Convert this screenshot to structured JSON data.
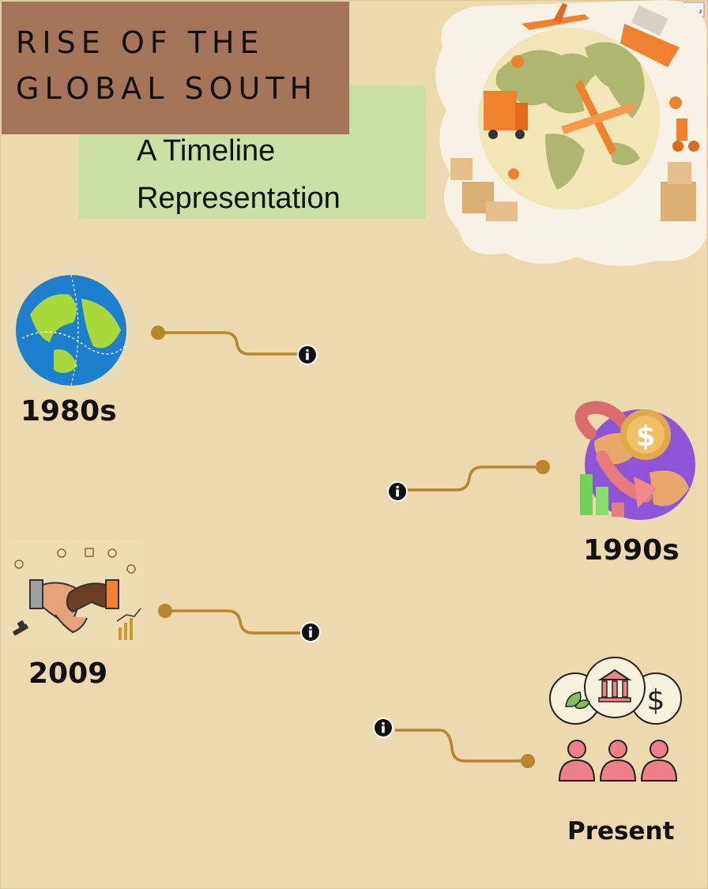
{
  "header": {
    "title_line1": "RISE OF THE",
    "title_line2": "GLOBAL SOUTH",
    "subtitle_line1": "A Timeline",
    "subtitle_line2": "Representation"
  },
  "timeline": {
    "events": [
      {
        "label": "1980s",
        "icon": "globe-icon",
        "side": "left"
      },
      {
        "label": "1990s",
        "icon": "finance-globe-icon",
        "side": "right"
      },
      {
        "label": "2009",
        "icon": "handshake-icon",
        "side": "left"
      },
      {
        "label": "Present",
        "icon": "institutions-people-icon",
        "side": "right"
      }
    ],
    "info_icon": "info-icon",
    "connector_color": "#b8862b"
  },
  "colors": {
    "background": "#ecd9ae",
    "title_box": "#a5755a",
    "subtitle_box": "#c9e1a5",
    "accent_orange": "#f0822f"
  },
  "header_image_icon": "globe-logistics-icon",
  "toolbar_icon": "expand-icon"
}
